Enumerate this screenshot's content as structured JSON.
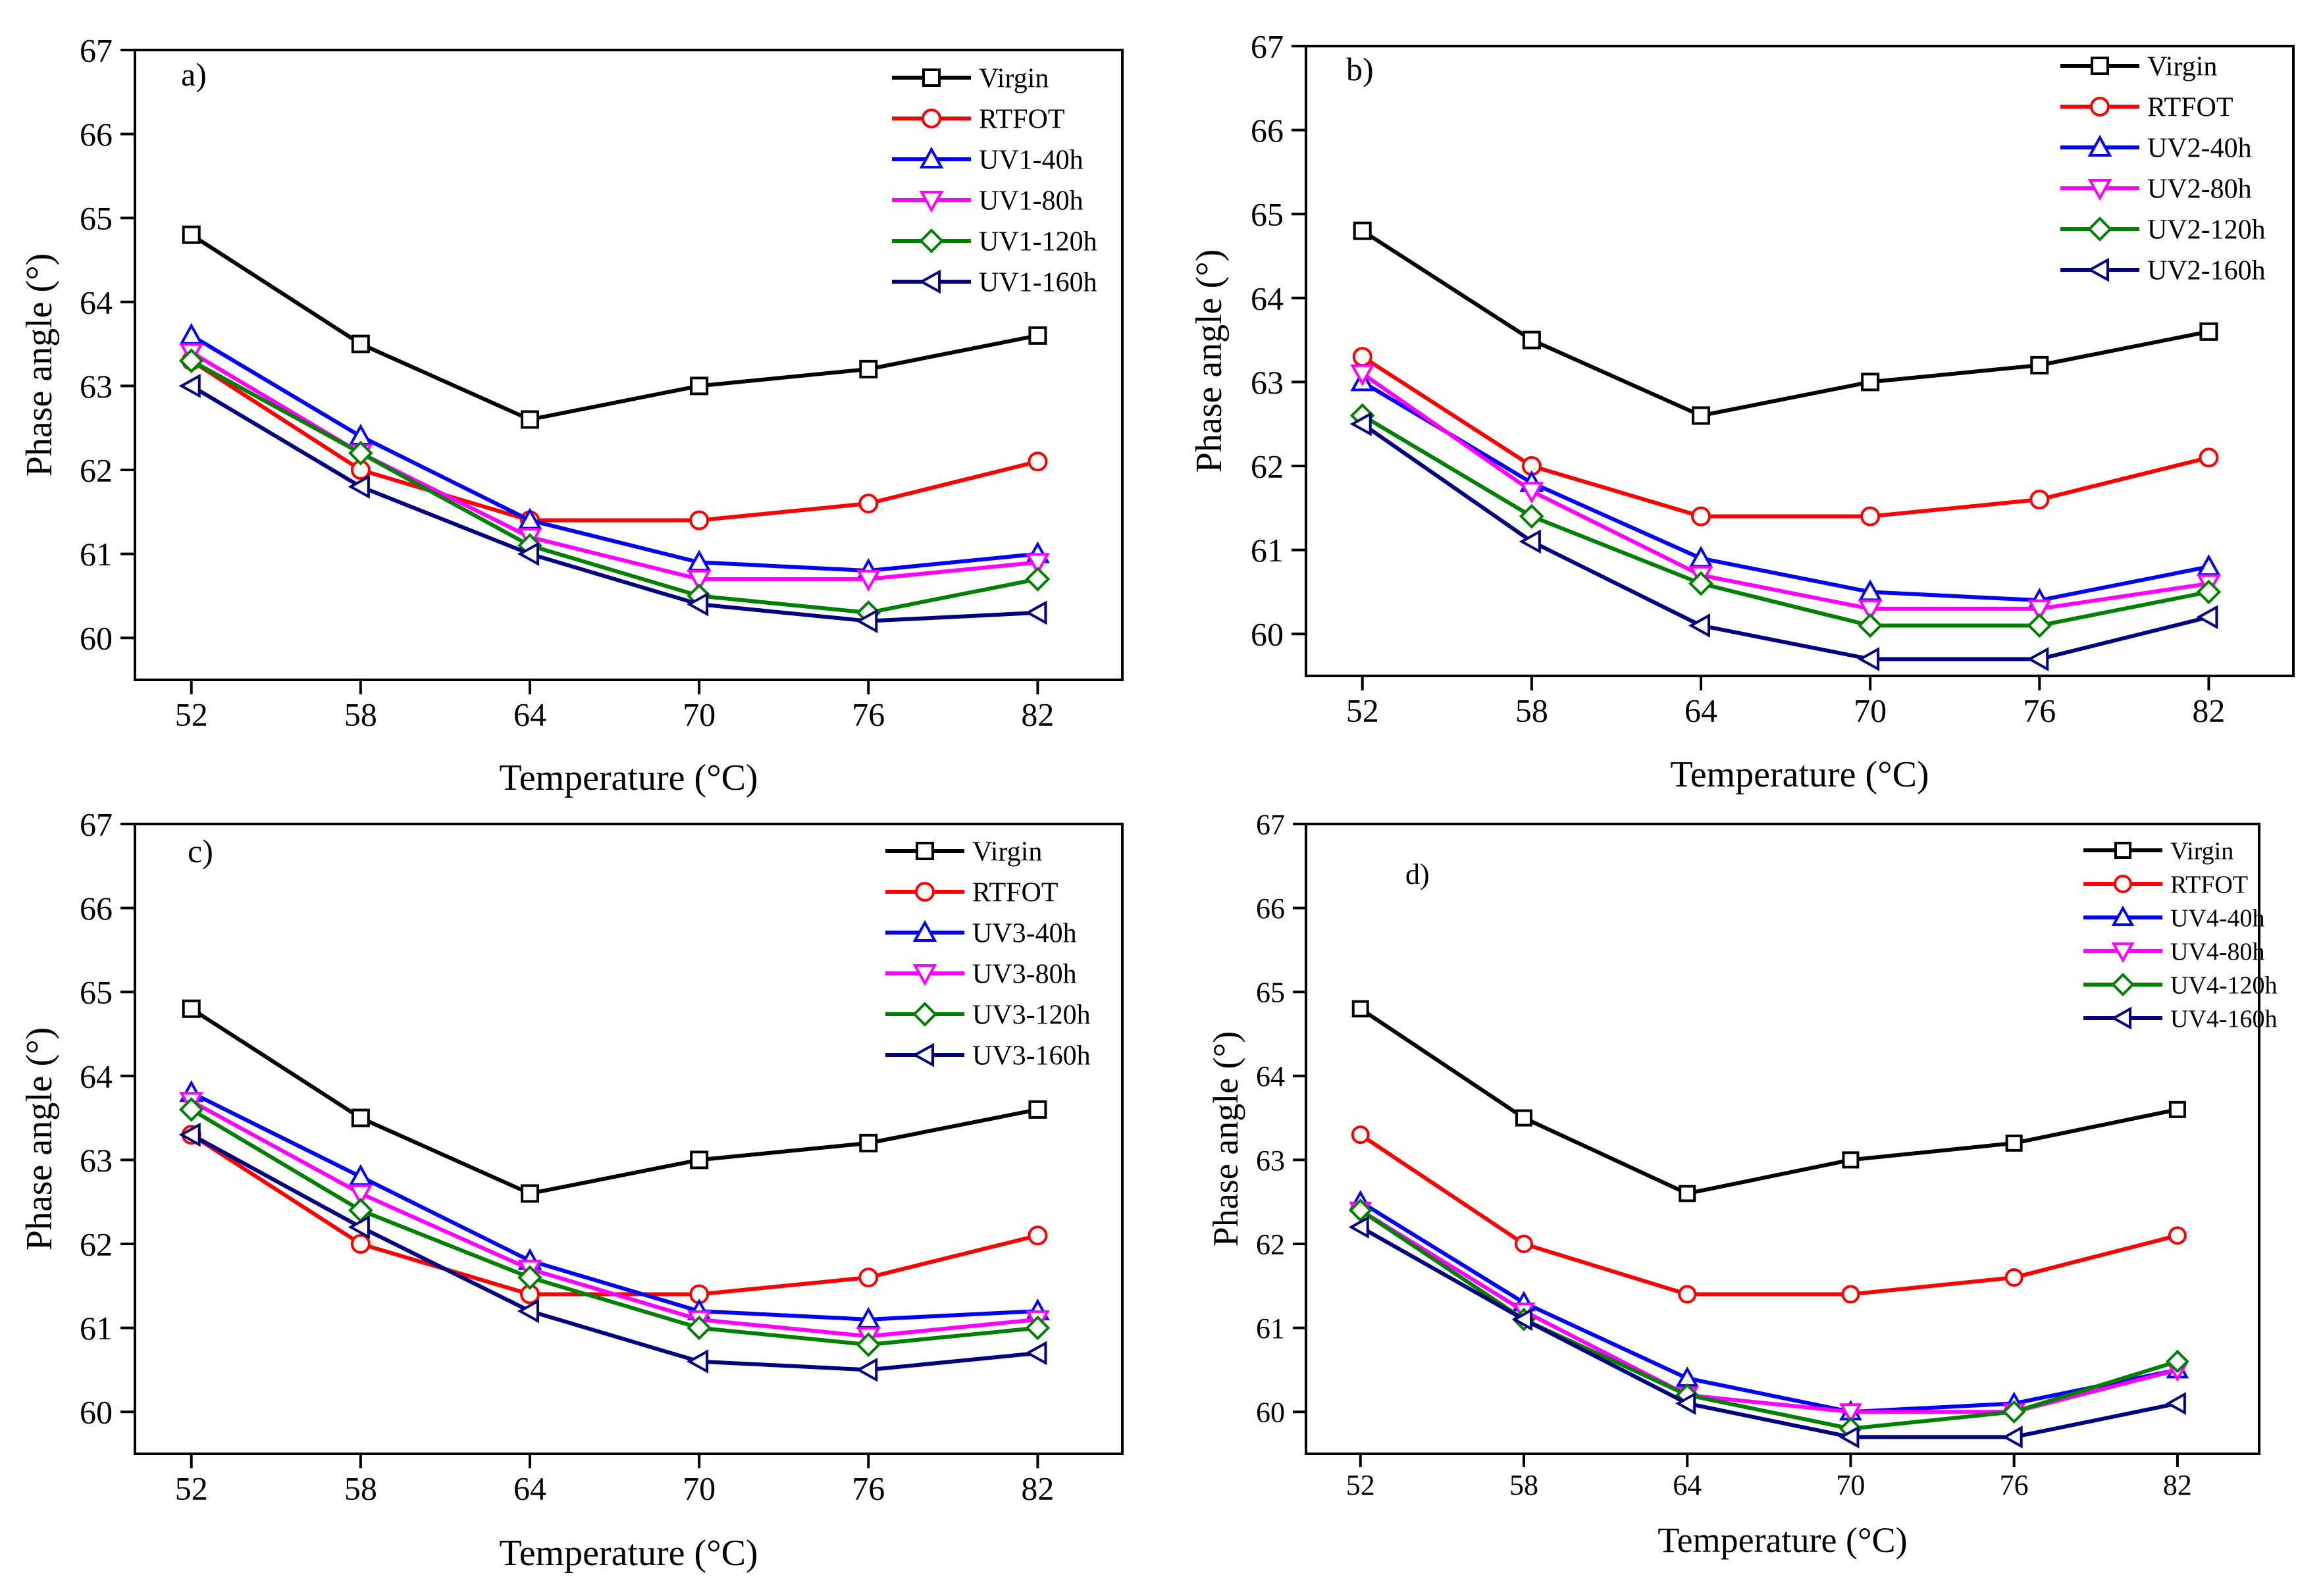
{
  "chart_data": [
    {
      "type": "line",
      "panel_label": "a)",
      "title": "",
      "xlabel": "Temperature (°C)",
      "ylabel": "Phase angle (°)",
      "categories": [
        "52",
        "58",
        "64",
        "70",
        "76",
        "82"
      ],
      "x": [
        52,
        58,
        64,
        70,
        76,
        82
      ],
      "xlim": [
        50,
        85
      ],
      "ylim": [
        59.5,
        67
      ],
      "yticks": [
        "60",
        "61",
        "62",
        "63",
        "64",
        "65",
        "66",
        "67"
      ],
      "legend_position": "top-right",
      "series": [
        {
          "name": "Virgin",
          "color": "#000000",
          "marker": "square",
          "values": [
            64.8,
            63.5,
            62.6,
            63.0,
            63.2,
            63.6
          ]
        },
        {
          "name": "RTFOT",
          "color": "#ff0000",
          "marker": "circle",
          "values": [
            63.3,
            62.0,
            61.4,
            61.4,
            61.6,
            62.1
          ]
        },
        {
          "name": "UV1-40h",
          "color": "#0000ff",
          "marker": "triangle-up",
          "values": [
            63.6,
            62.4,
            61.4,
            60.9,
            60.8,
            61.0
          ]
        },
        {
          "name": "UV1-80h",
          "color": "#ff00ff",
          "marker": "triangle-down",
          "values": [
            63.4,
            62.2,
            61.2,
            60.7,
            60.7,
            60.9
          ]
        },
        {
          "name": "UV1-120h",
          "color": "#008000",
          "marker": "diamond",
          "values": [
            63.3,
            62.2,
            61.1,
            60.5,
            60.3,
            60.7
          ]
        },
        {
          "name": "UV1-160h",
          "color": "#000080",
          "marker": "triangle-left",
          "values": [
            63.0,
            61.8,
            61.0,
            60.4,
            60.2,
            60.3
          ]
        }
      ]
    },
    {
      "type": "line",
      "panel_label": "b)",
      "title": "",
      "xlabel": "Temperature (°C)",
      "ylabel": "Phase angle (°)",
      "categories": [
        "52",
        "58",
        "64",
        "70",
        "76",
        "82"
      ],
      "x": [
        52,
        58,
        64,
        70,
        76,
        82
      ],
      "xlim": [
        50,
        85
      ],
      "ylim": [
        59.5,
        67
      ],
      "yticks": [
        "60",
        "61",
        "62",
        "63",
        "64",
        "65",
        "66",
        "67"
      ],
      "legend_position": "top-right",
      "series": [
        {
          "name": "Virgin",
          "color": "#000000",
          "marker": "square",
          "values": [
            64.8,
            63.5,
            62.6,
            63.0,
            63.2,
            63.6
          ]
        },
        {
          "name": "RTFOT",
          "color": "#ff0000",
          "marker": "circle",
          "values": [
            63.3,
            62.0,
            61.4,
            61.4,
            61.6,
            62.1
          ]
        },
        {
          "name": "UV2-40h",
          "color": "#0000ff",
          "marker": "triangle-up",
          "values": [
            63.0,
            61.8,
            60.9,
            60.5,
            60.4,
            60.8
          ]
        },
        {
          "name": "UV2-80h",
          "color": "#ff00ff",
          "marker": "triangle-down",
          "values": [
            63.1,
            61.7,
            60.7,
            60.3,
            60.3,
            60.6
          ]
        },
        {
          "name": "UV2-120h",
          "color": "#008000",
          "marker": "diamond",
          "values": [
            62.6,
            61.4,
            60.6,
            60.1,
            60.1,
            60.5
          ]
        },
        {
          "name": "UV2-160h",
          "color": "#000080",
          "marker": "triangle-left",
          "values": [
            62.5,
            61.1,
            60.1,
            59.7,
            59.7,
            60.2
          ]
        }
      ]
    },
    {
      "type": "line",
      "panel_label": "c)",
      "title": "",
      "xlabel": "Temperature (°C)",
      "ylabel": "Phase angle (°)",
      "categories": [
        "52",
        "58",
        "64",
        "70",
        "76",
        "82"
      ],
      "x": [
        52,
        58,
        64,
        70,
        76,
        82
      ],
      "xlim": [
        50,
        85
      ],
      "ylim": [
        59.5,
        67
      ],
      "yticks": [
        "60",
        "61",
        "62",
        "63",
        "64",
        "65",
        "66",
        "67"
      ],
      "legend_position": "top-right",
      "series": [
        {
          "name": "Virgin",
          "color": "#000000",
          "marker": "square",
          "values": [
            64.8,
            63.5,
            62.6,
            63.0,
            63.2,
            63.6
          ]
        },
        {
          "name": "RTFOT",
          "color": "#ff0000",
          "marker": "circle",
          "values": [
            63.3,
            62.0,
            61.4,
            61.4,
            61.6,
            62.1
          ]
        },
        {
          "name": "UV3-40h",
          "color": "#0000ff",
          "marker": "triangle-up",
          "values": [
            63.8,
            62.8,
            61.8,
            61.2,
            61.1,
            61.2
          ]
        },
        {
          "name": "UV3-80h",
          "color": "#ff00ff",
          "marker": "triangle-down",
          "values": [
            63.7,
            62.6,
            61.7,
            61.1,
            60.9,
            61.1
          ]
        },
        {
          "name": "UV3-120h",
          "color": "#008000",
          "marker": "diamond",
          "values": [
            63.6,
            62.4,
            61.6,
            61.0,
            60.8,
            61.0
          ]
        },
        {
          "name": "UV3-160h",
          "color": "#000080",
          "marker": "triangle-left",
          "values": [
            63.3,
            62.2,
            61.2,
            60.6,
            60.5,
            60.7
          ]
        }
      ]
    },
    {
      "type": "line",
      "panel_label": "d)",
      "title": "",
      "xlabel": "Temperature (°C)",
      "ylabel": "Phase angle (°)",
      "categories": [
        "52",
        "58",
        "64",
        "70",
        "76",
        "82"
      ],
      "x": [
        52,
        58,
        64,
        70,
        76,
        82
      ],
      "xlim": [
        50,
        85
      ],
      "ylim": [
        59.5,
        67
      ],
      "yticks": [
        "60",
        "61",
        "62",
        "63",
        "64",
        "65",
        "66",
        "67"
      ],
      "legend_position": "top-right",
      "series": [
        {
          "name": "Virgin",
          "color": "#000000",
          "marker": "square",
          "values": [
            64.8,
            63.5,
            62.6,
            63.0,
            63.2,
            63.6
          ]
        },
        {
          "name": "RTFOT",
          "color": "#ff0000",
          "marker": "circle",
          "values": [
            63.3,
            62.0,
            61.4,
            61.4,
            61.6,
            62.1
          ]
        },
        {
          "name": "UV4-40h",
          "color": "#0000ff",
          "marker": "triangle-up",
          "values": [
            62.5,
            61.3,
            60.4,
            60.0,
            60.1,
            60.5
          ]
        },
        {
          "name": "UV4-80h",
          "color": "#ff00ff",
          "marker": "triangle-down",
          "values": [
            62.4,
            61.2,
            60.2,
            60.0,
            60.0,
            60.5
          ]
        },
        {
          "name": "UV4-120h",
          "color": "#008000",
          "marker": "diamond",
          "values": [
            62.4,
            61.1,
            60.2,
            59.8,
            60.0,
            60.6
          ]
        },
        {
          "name": "UV4-160h",
          "color": "#000080",
          "marker": "triangle-left",
          "values": [
            62.2,
            61.1,
            60.1,
            59.7,
            59.7,
            60.1
          ]
        }
      ]
    }
  ]
}
